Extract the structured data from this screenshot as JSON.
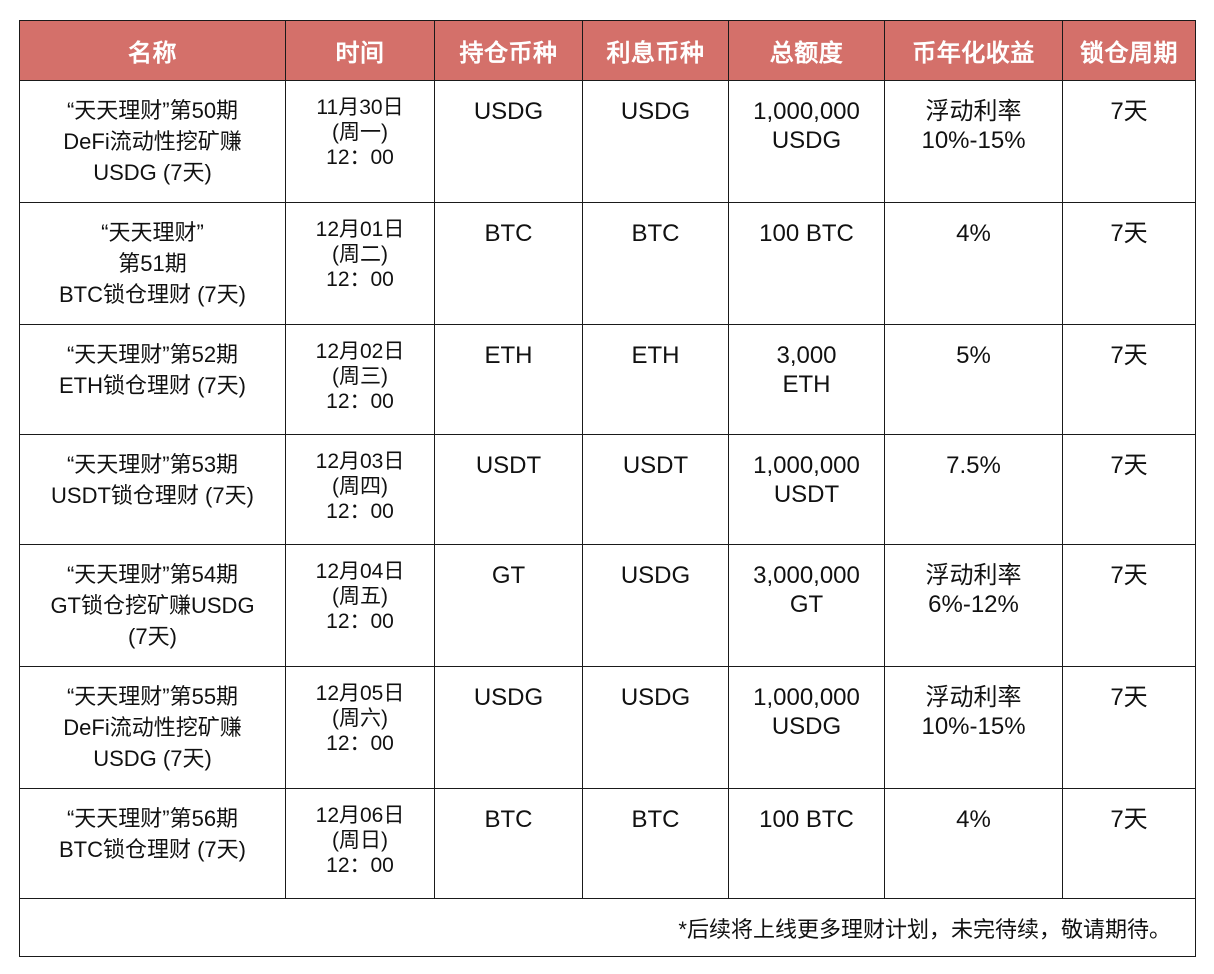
{
  "headers": [
    "名称",
    "时间",
    "持仓币种",
    "利息币种",
    "总额度",
    "币年化收益",
    "锁仓周期"
  ],
  "rows": [
    {
      "name": [
        "“天天理财”第50期",
        "DeFi流动性挖矿赚",
        "USDG (7天)"
      ],
      "time": [
        "11月30日",
        "(周一)",
        "12：00"
      ],
      "hold": "USDG",
      "interest": "USDG",
      "total": [
        "1,000,000",
        "USDG"
      ],
      "yield": [
        "浮动利率",
        "10%-15%"
      ],
      "period": "7天"
    },
    {
      "name": [
        "“天天理财”",
        "第51期",
        "BTC锁仓理财 (7天)"
      ],
      "time": [
        "12月01日",
        "(周二)",
        "12：00"
      ],
      "hold": "BTC",
      "interest": "BTC",
      "total": [
        "100 BTC"
      ],
      "yield": [
        "4%"
      ],
      "period": "7天"
    },
    {
      "name": [
        "“天天理财”第52期",
        "ETH锁仓理财 (7天)"
      ],
      "time": [
        "12月02日",
        "(周三)",
        "12：00"
      ],
      "hold": "ETH",
      "interest": "ETH",
      "total": [
        "3,000",
        "ETH"
      ],
      "yield": [
        "5%"
      ],
      "period": "7天"
    },
    {
      "name": [
        "“天天理财”第53期",
        "USDT锁仓理财 (7天)"
      ],
      "time": [
        "12月03日",
        "(周四)",
        "12：00"
      ],
      "hold": "USDT",
      "interest": "USDT",
      "total": [
        "1,000,000",
        "USDT"
      ],
      "yield": [
        "7.5%"
      ],
      "period": "7天"
    },
    {
      "name": [
        "“天天理财”第54期",
        "GT锁仓挖矿赚USDG",
        "(7天)"
      ],
      "time": [
        "12月04日",
        "(周五)",
        "12：00"
      ],
      "hold": "GT",
      "interest": "USDG",
      "total": [
        "3,000,000",
        "GT"
      ],
      "yield": [
        "浮动利率",
        "6%-12%"
      ],
      "period": "7天"
    },
    {
      "name": [
        "“天天理财”第55期",
        "DeFi流动性挖矿赚",
        "USDG (7天)"
      ],
      "time": [
        "12月05日",
        "(周六)",
        "12：00"
      ],
      "hold": "USDG",
      "interest": "USDG",
      "total": [
        "1,000,000",
        "USDG"
      ],
      "yield": [
        "浮动利率",
        "10%-15%"
      ],
      "period": "7天"
    },
    {
      "name": [
        "“天天理财”第56期",
        "BTC锁仓理财 (7天)"
      ],
      "time": [
        "12月06日",
        "(周日)",
        "12：00"
      ],
      "hold": "BTC",
      "interest": "BTC",
      "total": [
        "100 BTC"
      ],
      "yield": [
        "4%"
      ],
      "period": "7天"
    }
  ],
  "footnote": "*后续将上线更多理财计划，未完待续，敬请期待。"
}
